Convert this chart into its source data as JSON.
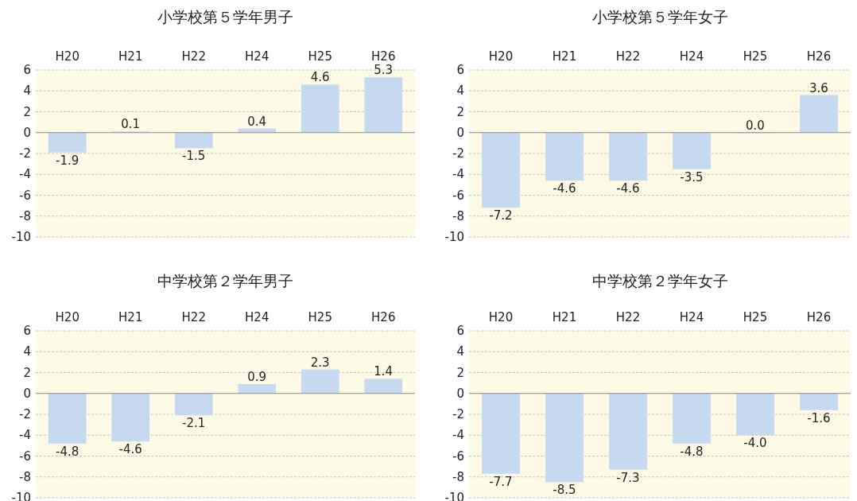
{
  "chart_data": [
    {
      "type": "bar",
      "title": "小学校第５学年男子",
      "categories": [
        "H20",
        "H21",
        "H22",
        "H24",
        "H25",
        "H26"
      ],
      "values": [
        -1.9,
        0.1,
        -1.5,
        0.4,
        4.6,
        5.3
      ],
      "value_labels": [
        "-1.9",
        "0.1",
        "-1.5",
        "0.4",
        "4.6",
        "5.3"
      ],
      "color": "#c6d9f0",
      "ylim": [
        -10,
        6
      ],
      "yticks": [
        -10,
        -8,
        -6,
        -4,
        -2,
        0,
        2,
        4,
        6
      ],
      "grid": "y"
    },
    {
      "type": "bar",
      "title": "小学校第５学年女子",
      "categories": [
        "H20",
        "H21",
        "H22",
        "H24",
        "H25",
        "H26"
      ],
      "values": [
        -7.2,
        -4.6,
        -4.6,
        -3.5,
        0.0,
        3.6
      ],
      "value_labels": [
        "-7.2",
        "-4.6",
        "-4.6",
        "-3.5",
        "0.0",
        "3.6"
      ],
      "color": "#c6d9f0",
      "ylim": [
        -10,
        6
      ],
      "yticks": [
        -10,
        -8,
        -6,
        -4,
        -2,
        0,
        2,
        4,
        6
      ],
      "grid": "y"
    },
    {
      "type": "bar",
      "title": "中学校第２学年男子",
      "categories": [
        "H20",
        "H21",
        "H22",
        "H24",
        "H25",
        "H26"
      ],
      "values": [
        -4.8,
        -4.6,
        -2.1,
        0.9,
        2.3,
        1.4
      ],
      "value_labels": [
        "-4.8",
        "-4.6",
        "-2.1",
        "0.9",
        "2.3",
        "1.4"
      ],
      "color": "#c6d9f0",
      "ylim": [
        -10,
        6
      ],
      "yticks": [
        -10,
        -8,
        -6,
        -4,
        -2,
        0,
        2,
        4,
        6
      ],
      "grid": "y"
    },
    {
      "type": "bar",
      "title": "中学校第２学年女子",
      "categories": [
        "H20",
        "H21",
        "H22",
        "H24",
        "H25",
        "H26"
      ],
      "values": [
        -7.7,
        -8.5,
        -7.3,
        -4.8,
        -4.0,
        -1.6
      ],
      "value_labels": [
        "-7.7",
        "-8.5",
        "-7.3",
        "-4.8",
        "-4.0",
        "-1.6"
      ],
      "color": "#c6d9f0",
      "ylim": [
        -10,
        6
      ],
      "yticks": [
        -10,
        -8,
        -6,
        -4,
        -2,
        0,
        2,
        4,
        6
      ],
      "grid": "y"
    }
  ]
}
